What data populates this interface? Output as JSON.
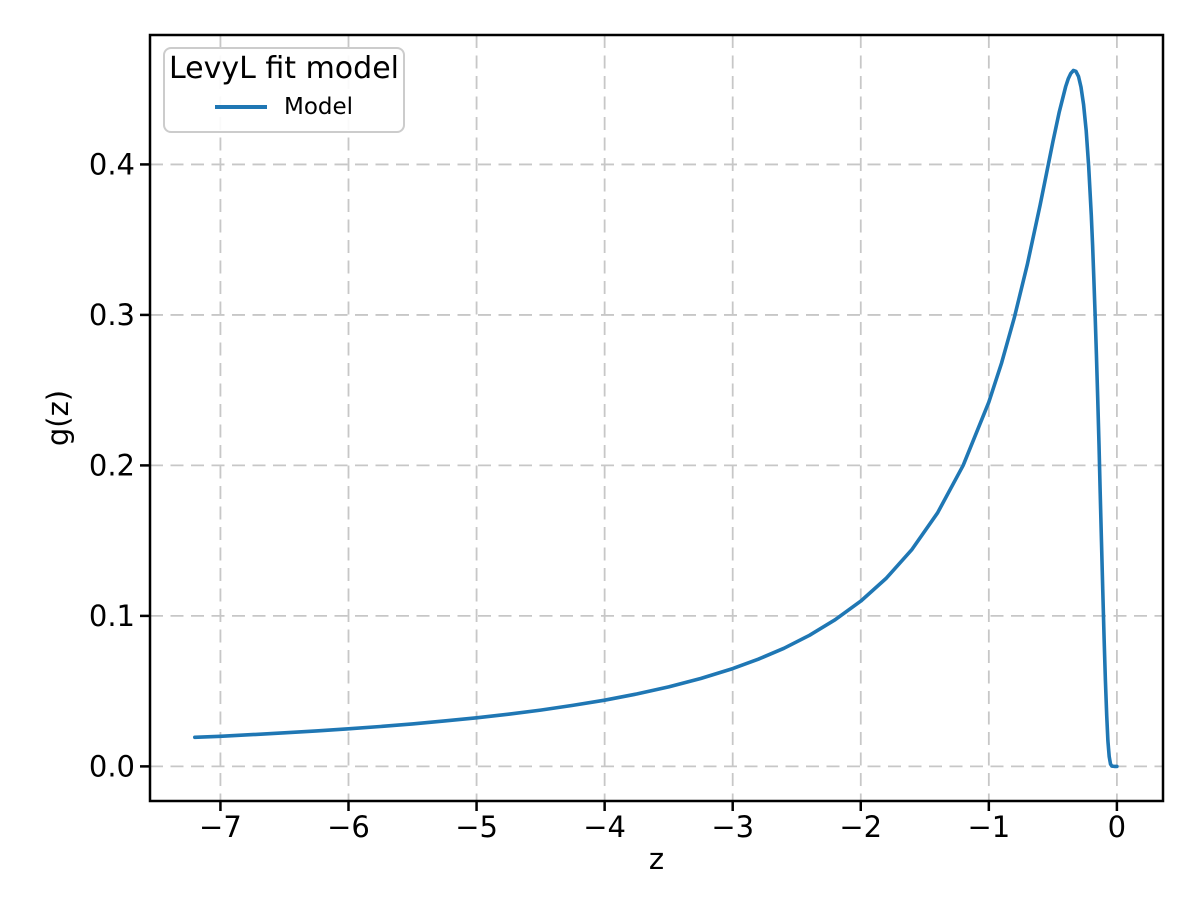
{
  "chart_data": {
    "type": "line",
    "title": "",
    "xlabel": "z",
    "ylabel": "g(z)",
    "xlim": [
      -7.55,
      0.36
    ],
    "ylim": [
      -0.023,
      0.486
    ],
    "xticks": [
      -7,
      -6,
      -5,
      -4,
      -3,
      -2,
      -1,
      0
    ],
    "xtick_labels": [
      "−7",
      "−6",
      "−5",
      "−4",
      "−3",
      "−2",
      "−1",
      "0"
    ],
    "yticks": [
      0.0,
      0.1,
      0.2,
      0.3,
      0.4
    ],
    "ytick_labels": [
      "0.0",
      "0.1",
      "0.2",
      "0.3",
      "0.4"
    ],
    "grid": true,
    "grid_style": "dashed",
    "legend": {
      "title": "LevyL fit model",
      "position": "upper left",
      "entries": [
        {
          "label": "Model",
          "color": "#1f77b4"
        }
      ]
    },
    "series": [
      {
        "name": "Model",
        "color": "#1f77b4",
        "x": [
          -7.2,
          -7.0,
          -6.75,
          -6.5,
          -6.25,
          -6.0,
          -5.75,
          -5.5,
          -5.25,
          -5.0,
          -4.75,
          -4.5,
          -4.25,
          -4.0,
          -3.75,
          -3.5,
          -3.25,
          -3.0,
          -2.8,
          -2.6,
          -2.4,
          -2.2,
          -2.0,
          -1.8,
          -1.6,
          -1.4,
          -1.2,
          -1.0,
          -0.9,
          -0.8,
          -0.7,
          -0.6,
          -0.55,
          -0.5,
          -0.45,
          -0.4,
          -0.38,
          -0.36,
          -0.34,
          -0.32,
          -0.3,
          -0.28,
          -0.26,
          -0.24,
          -0.22,
          -0.2,
          -0.19,
          -0.18,
          -0.17,
          -0.16,
          -0.15,
          -0.14,
          -0.13,
          -0.12,
          -0.11,
          -0.1,
          -0.09,
          -0.08,
          -0.07,
          -0.06,
          -0.05,
          -0.04,
          -0.02,
          0.0
        ],
        "y": [
          0.0193,
          0.02,
          0.0211,
          0.0223,
          0.0236,
          0.025,
          0.0265,
          0.0282,
          0.0302,
          0.0323,
          0.0347,
          0.0374,
          0.0405,
          0.044,
          0.0481,
          0.0528,
          0.0584,
          0.065,
          0.0712,
          0.0785,
          0.0871,
          0.0975,
          0.1098,
          0.1251,
          0.1442,
          0.1685,
          0.2001,
          0.242,
          0.2681,
          0.2984,
          0.3334,
          0.373,
          0.394,
          0.4151,
          0.435,
          0.4518,
          0.4568,
          0.4605,
          0.4624,
          0.4619,
          0.4585,
          0.4514,
          0.4396,
          0.4224,
          0.3984,
          0.3661,
          0.3463,
          0.3248,
          0.3004,
          0.2739,
          0.2449,
          0.214,
          0.1817,
          0.1488,
          0.1161,
          0.085,
          0.0571,
          0.034,
          0.017,
          0.0065,
          0.0016,
          0.0002,
          0.0,
          0.0
        ]
      }
    ]
  },
  "colors": {
    "line": "#1f77b4",
    "grid": "#c7c7c7",
    "spine": "#000000",
    "background": "#ffffff",
    "legend_border": "#cccccc"
  }
}
